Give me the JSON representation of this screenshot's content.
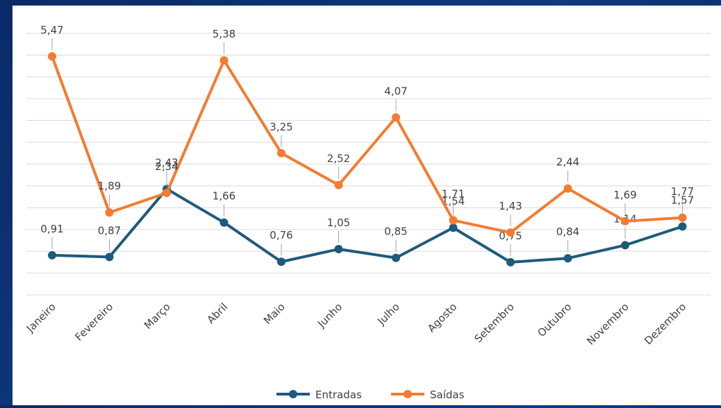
{
  "chart_data": {
    "type": "line",
    "categories": [
      "Janeiro",
      "Fevereiro",
      "Março",
      "Abril",
      "Maio",
      "Junho",
      "Julho",
      "Agosto",
      "Setembro",
      "Outubro",
      "Novembro",
      "Dezembro"
    ],
    "series": [
      {
        "name": "Entradas",
        "color": "#1d5b7c",
        "values": [
          0.91,
          0.87,
          2.43,
          1.66,
          0.76,
          1.05,
          0.85,
          1.54,
          0.75,
          0.84,
          1.14,
          1.57
        ],
        "value_labels": [
          "0,91",
          "0,87",
          "2,43",
          "1,66",
          "0,76",
          "1,05",
          "0,85",
          "1,54",
          "0,75",
          "0,84",
          "1,14",
          "1,57"
        ]
      },
      {
        "name": "Saídas",
        "color": "#f47b2f",
        "values": [
          5.47,
          1.89,
          2.34,
          5.38,
          3.25,
          2.52,
          4.07,
          1.71,
          1.43,
          2.44,
          1.69,
          1.77
        ],
        "value_labels": [
          "5,47",
          "1,89",
          "2,34",
          "5,38",
          "3,25",
          "2,52",
          "4,07",
          "1,71",
          "1,43",
          "2,44",
          "1,69",
          "1,77"
        ]
      }
    ],
    "ylim": [
      0,
      6
    ],
    "yticks": [
      0,
      0.5,
      1,
      1.5,
      2,
      2.5,
      3,
      3.5,
      4,
      4.5,
      5,
      5.5,
      6
    ],
    "grid": true,
    "legend": "bottom"
  }
}
